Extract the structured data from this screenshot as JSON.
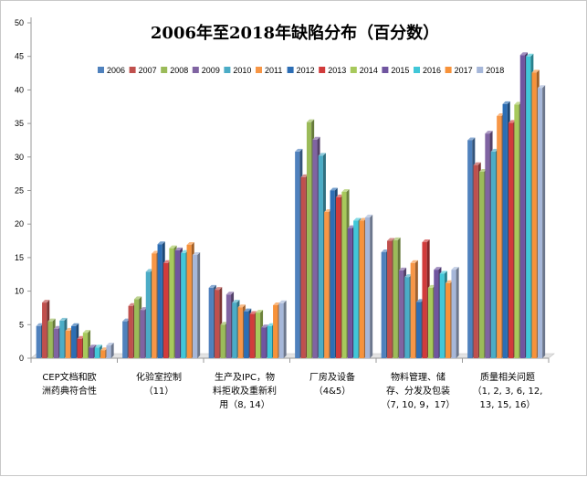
{
  "chart_data": {
    "type": "bar",
    "title": "2006年至2018年缺陷分布（百分数）",
    "xlabel": "",
    "ylabel": "",
    "ylim": [
      0,
      50
    ],
    "yticks": [
      0,
      5,
      10,
      15,
      20,
      25,
      30,
      35,
      40,
      45,
      50
    ],
    "grid": false,
    "legend_position": "top",
    "categories": [
      {
        "line1": "CEP文档和欧",
        "line2": "洲药典符合性",
        "line3": ""
      },
      {
        "line1": "化验室控制",
        "line2": "（11）",
        "line3": ""
      },
      {
        "line1": "生产及IPC，物",
        "line2": "料拒收及重新利",
        "line3": "用（8, 14）"
      },
      {
        "line1": "厂房及设备",
        "line2": "（4&5）",
        "line3": ""
      },
      {
        "line1": "物料管理、储",
        "line2": "存、分发及包装",
        "line3": "（7, 10, 9，17）"
      },
      {
        "line1": "质量相关问题",
        "line2": "（1, 2, 3, 6, 12,",
        "line3": "13, 15, 16）"
      }
    ],
    "series": [
      {
        "name": "2006",
        "color": "#4f81bd",
        "values": [
          4.8,
          5.5,
          10.5,
          30.8,
          15.8,
          32.5
        ]
      },
      {
        "name": "2007",
        "color": "#c0504d",
        "values": [
          8.3,
          7.8,
          10.2,
          27.0,
          17.5,
          28.8
        ]
      },
      {
        "name": "2008",
        "color": "#9bbb59",
        "values": [
          5.5,
          8.8,
          5.0,
          35.2,
          17.6,
          27.8
        ]
      },
      {
        "name": "2009",
        "color": "#8064a2",
        "values": [
          4.4,
          7.2,
          9.5,
          32.6,
          13.1,
          33.5
        ]
      },
      {
        "name": "2010",
        "color": "#4bacc6",
        "values": [
          5.6,
          12.9,
          8.3,
          30.2,
          12.1,
          30.8
        ]
      },
      {
        "name": "2011",
        "color": "#f79646",
        "values": [
          4.1,
          15.6,
          7.6,
          21.8,
          14.2,
          36.1
        ]
      },
      {
        "name": "2012",
        "color": "#2c6eb5",
        "values": [
          4.8,
          17.0,
          7.0,
          25.0,
          8.4,
          37.9
        ]
      },
      {
        "name": "2013",
        "color": "#d13b3b",
        "values": [
          2.9,
          14.2,
          6.6,
          24.0,
          17.3,
          35.1
        ]
      },
      {
        "name": "2014",
        "color": "#a7c95c",
        "values": [
          3.8,
          16.4,
          6.8,
          24.8,
          10.5,
          37.8
        ]
      },
      {
        "name": "2015",
        "color": "#7055a0",
        "values": [
          1.6,
          16.1,
          4.6,
          19.4,
          13.2,
          45.2
        ]
      },
      {
        "name": "2016",
        "color": "#41c7d8",
        "values": [
          1.6,
          15.7,
          4.8,
          20.5,
          12.6,
          45.0
        ]
      },
      {
        "name": "2017",
        "color": "#f7923a",
        "values": [
          1.2,
          16.9,
          7.9,
          20.5,
          11.2,
          42.6
        ]
      },
      {
        "name": "2018",
        "color": "#a6b7d9",
        "values": [
          1.9,
          15.4,
          8.2,
          21.0,
          13.2,
          40.3
        ]
      }
    ]
  }
}
